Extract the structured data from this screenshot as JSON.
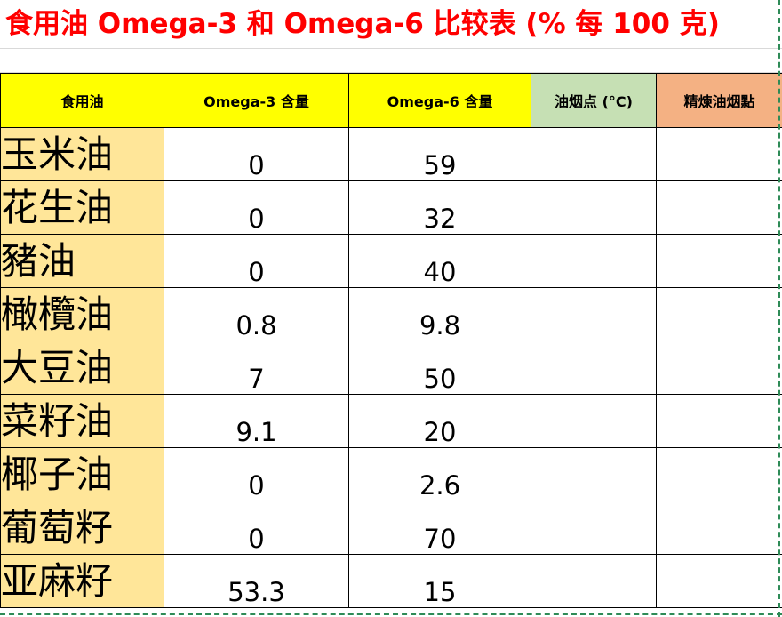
{
  "title": "食用油 Omega-3 和 Omega-6 比较表 (% 每 100 克)",
  "colors": {
    "title": "#ff0000",
    "header_yellow": "#ffff00",
    "header_green": "#c6e0b4",
    "header_orange": "#f4b183",
    "name_column": "#ffe699"
  },
  "headers": [
    "食用油",
    "Omega-3 含量",
    "Omega-6 含量",
    "油烟点 (°C)",
    "精煉油烟點"
  ],
  "rows": [
    {
      "name": "玉米油",
      "omega3": "0",
      "omega6": "59"
    },
    {
      "name": "花生油",
      "omega3": "0",
      "omega6": "32"
    },
    {
      "name": "豬油",
      "omega3": "0",
      "omega6": "40"
    },
    {
      "name": "橄欖油",
      "omega3": "0.8",
      "omega6": "9.8"
    },
    {
      "name": "大豆油",
      "omega3": "7",
      "omega6": "50"
    },
    {
      "name": "菜籽油",
      "omega3": "9.1",
      "omega6": "20"
    },
    {
      "name": "椰子油",
      "omega3": "0",
      "omega6": "2.6"
    },
    {
      "name": "葡萄籽",
      "omega3": "0",
      "omega6": "70"
    },
    {
      "name": "亚麻籽",
      "omega3": "53.3",
      "omega6": "15"
    }
  ]
}
